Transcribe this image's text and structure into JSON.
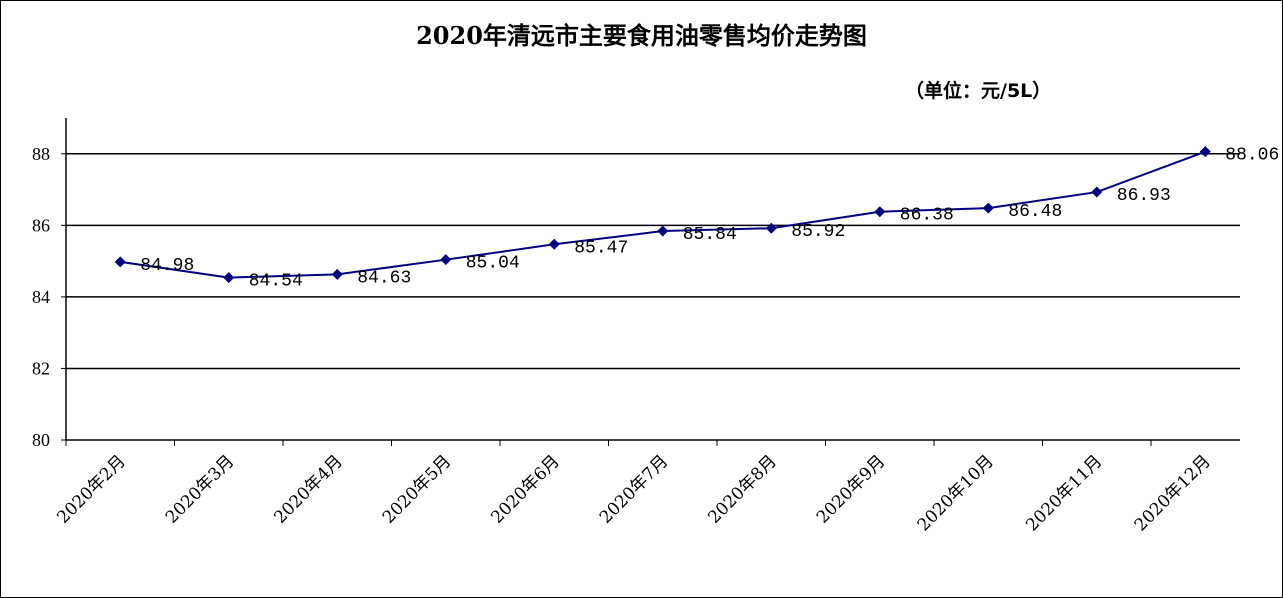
{
  "chart_data": {
    "type": "line",
    "title": "2020年清远市主要食用油零售均价走势图",
    "unit_note": "（单位：元/5L）",
    "categories": [
      "2020年2月",
      "2020年3月",
      "2020年4月",
      "2020年5月",
      "2020年6月",
      "2020年7月",
      "2020年8月",
      "2020年9月",
      "2020年10月",
      "2020年11月",
      "2020年12月"
    ],
    "values": [
      84.98,
      84.54,
      84.63,
      85.04,
      85.47,
      85.84,
      85.92,
      86.38,
      86.48,
      86.93,
      88.06
    ],
    "value_labels": [
      "84.98",
      "84.54",
      "84.63",
      "85.04",
      "85.47",
      "85.84",
      "85.92",
      "86.38",
      "86.48",
      "86.93",
      "88.06"
    ],
    "ylim": [
      80,
      89
    ],
    "yticks": [
      80,
      82,
      84,
      86,
      88
    ],
    "xlabel": "",
    "ylabel": "",
    "grid": true,
    "legend": "none",
    "line_color": "#000080",
    "marker": "diamond"
  }
}
